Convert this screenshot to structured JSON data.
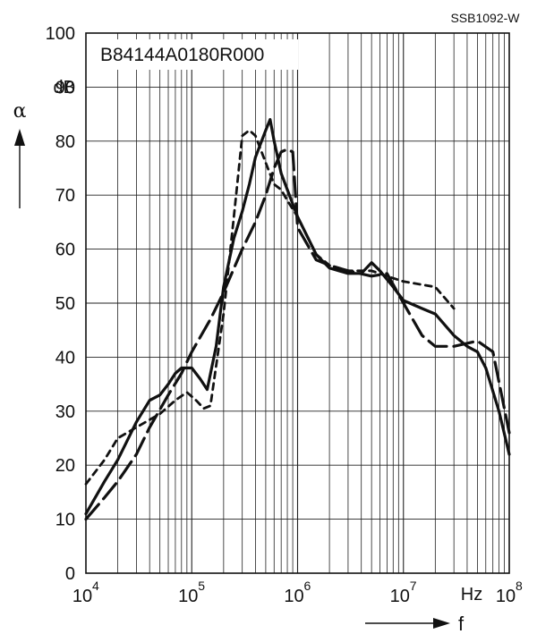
{
  "chart_data": {
    "type": "line",
    "doc_id": "SSB1092-W",
    "part_number": "B84144A0180R000",
    "ylabel": "α",
    "yunit": "dB",
    "xlabel": "f",
    "xunit": "Hz",
    "xscale": "log",
    "xlim": [
      10000,
      100000000
    ],
    "ylim": [
      0,
      100
    ],
    "grid": true,
    "yticks": [
      0,
      10,
      20,
      30,
      40,
      50,
      60,
      70,
      80,
      90,
      100
    ],
    "xticks": [
      {
        "value": 10000,
        "base": "10",
        "exp": "4"
      },
      {
        "value": 100000,
        "base": "10",
        "exp": "5"
      },
      {
        "value": 1000000,
        "base": "10",
        "exp": "6"
      },
      {
        "value": 10000000,
        "base": "10",
        "exp": "7"
      },
      {
        "value": 100000000,
        "base": "10",
        "exp": "8"
      }
    ],
    "series": [
      {
        "style": "solid",
        "x": [
          10000,
          15000,
          20000,
          30000,
          40000,
          50000,
          60000,
          70000,
          80000,
          100000,
          120000,
          140000,
          170000,
          200000,
          250000,
          300000,
          350000,
          400000,
          500000,
          550000,
          600000,
          700000,
          1000000,
          1500000,
          2000000,
          3000000,
          4000000,
          5000000,
          6000000,
          8000000,
          10000000,
          15000000,
          20000000,
          30000000,
          40000000,
          50000000,
          60000000,
          80000000,
          100000000
        ],
        "y": [
          11,
          17,
          21,
          28,
          32,
          33,
          35,
          37,
          38,
          38,
          36,
          34,
          42,
          53,
          62,
          67,
          72,
          77,
          82,
          84,
          80,
          74,
          66,
          59,
          56.5,
          55.5,
          55.5,
          57.5,
          56,
          53,
          50.5,
          49,
          48,
          44,
          42,
          41,
          38,
          30,
          22
        ]
      },
      {
        "style": "short-dash",
        "x": [
          10000,
          15000,
          20000,
          30000,
          50000,
          70000,
          90000,
          110000,
          130000,
          150000,
          200000,
          250000,
          300000,
          350000,
          400000,
          500000,
          600000,
          700000,
          800000,
          1000000,
          1500000,
          2000000,
          3000000,
          5000000,
          7000000,
          10000000,
          20000000,
          30000000
        ],
        "y": [
          16.5,
          21,
          25,
          27,
          29.5,
          32,
          33.5,
          32,
          30.5,
          31,
          48,
          66,
          81,
          82,
          81,
          76,
          72,
          71,
          69,
          66,
          59,
          57,
          56,
          56,
          55,
          54,
          53,
          49
        ]
      },
      {
        "style": "long-dash",
        "x": [
          10000,
          15000,
          20000,
          30000,
          40000,
          60000,
          80000,
          100000,
          150000,
          200000,
          300000,
          400000,
          500000,
          600000,
          700000,
          800000,
          900000,
          1000000,
          1500000,
          2000000,
          3000000,
          5000000,
          7000000,
          10000000,
          15000000,
          20000000,
          30000000,
          50000000,
          70000000,
          100000000
        ],
        "y": [
          10,
          14,
          17,
          22,
          27,
          33,
          37,
          41,
          47,
          52,
          60,
          65,
          70,
          75,
          78,
          78.5,
          78,
          64,
          58,
          57,
          56,
          55,
          55.5,
          50,
          44,
          42,
          42,
          43,
          41,
          26
        ]
      }
    ]
  }
}
